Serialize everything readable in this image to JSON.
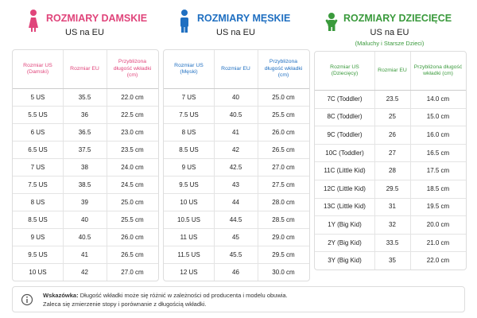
{
  "panels": [
    {
      "title": "ROZMIARY DAMSKIE",
      "subtitle": "US na EU",
      "color": "#e0457b",
      "columns": [
        "Rozmiar US (Damski)",
        "Rozmiar EU",
        "Przybliżona długość wkładki (cm)"
      ],
      "rows": [
        [
          "5 US",
          "35.5",
          "22.0 cm"
        ],
        [
          "5.5 US",
          "36",
          "22.5 cm"
        ],
        [
          "6 US",
          "36.5",
          "23.0 cm"
        ],
        [
          "6.5 US",
          "37.5",
          "23.5 cm"
        ],
        [
          "7 US",
          "38",
          "24.0 cm"
        ],
        [
          "7.5 US",
          "38.5",
          "24.5 cm"
        ],
        [
          "8 US",
          "39",
          "25.0 cm"
        ],
        [
          "8.5 US",
          "40",
          "25.5 cm"
        ],
        [
          "9 US",
          "40.5",
          "26.0 cm"
        ],
        [
          "9.5 US",
          "41",
          "26.5 cm"
        ],
        [
          "10 US",
          "42",
          "27.0 cm"
        ]
      ]
    },
    {
      "title": "ROZMIARY MĘSKIE",
      "subtitle": "US na EU",
      "color": "#1f6fc1",
      "columns": [
        "Rozmiar US (Męski)",
        "Rozmiar EU",
        "Przybliżona długość wkładki (cm)"
      ],
      "rows": [
        [
          "7 US",
          "40",
          "25.0 cm"
        ],
        [
          "7.5 US",
          "40.5",
          "25.5 cm"
        ],
        [
          "8 US",
          "41",
          "26.0 cm"
        ],
        [
          "8.5 US",
          "42",
          "26.5 cm"
        ],
        [
          "9 US",
          "42.5",
          "27.0 cm"
        ],
        [
          "9.5 US",
          "43",
          "27.5 cm"
        ],
        [
          "10 US",
          "44",
          "28.0 cm"
        ],
        [
          "10.5 US",
          "44.5",
          "28.5 cm"
        ],
        [
          "11 US",
          "45",
          "29.0 cm"
        ],
        [
          "11.5 US",
          "45.5",
          "29.5 cm"
        ],
        [
          "12 US",
          "46",
          "30.0 cm"
        ]
      ]
    },
    {
      "title": "ROZMIARY DZIECIĘCE",
      "subtitle": "US na EU",
      "note": "(Maluchy i Starsze Dzieci)",
      "color": "#3a9a3c",
      "columns": [
        "Rozmiar US (Dziecięcy)",
        "Rozmiar EU",
        "Przybliżona długość wkładki (cm)"
      ],
      "rows": [
        [
          "7C (Toddler)",
          "23.5",
          "14.0 cm"
        ],
        [
          "8C (Toddler)",
          "25",
          "15.0 cm"
        ],
        [
          "9C (Toddler)",
          "26",
          "16.0 cm"
        ],
        [
          "10C (Toddler)",
          "27",
          "16.5 cm"
        ],
        [
          "11C (Little Kid)",
          "28",
          "17.5 cm"
        ],
        [
          "12C (Little Kid)",
          "29.5",
          "18.5 cm"
        ],
        [
          "13C (Little Kid)",
          "31",
          "19.5 cm"
        ],
        [
          "1Y (Big Kid)",
          "32",
          "20.0 cm"
        ],
        [
          "2Y (Big Kid)",
          "33.5",
          "21.0 cm"
        ],
        [
          "3Y (Big Kid)",
          "35",
          "22.0 cm"
        ]
      ]
    }
  ],
  "footer": {
    "label": "Wskazówka:",
    "lines": [
      "Długość wkładki może się różnić w zależności od producenta i modelu obuwia.",
      "Zaleca się zmierzenie stopy i porównanie z długością wkładki."
    ]
  }
}
